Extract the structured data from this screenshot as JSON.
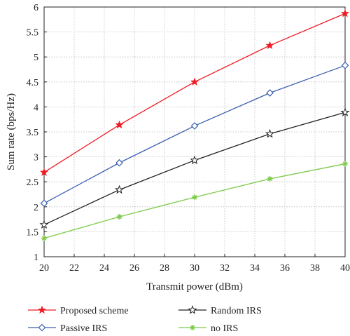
{
  "chart_data": {
    "type": "line",
    "xlabel": "Transmit power (dBm)",
    "ylabel": "Sum rate (bps/Hz)",
    "xlim": [
      20,
      40
    ],
    "ylim": [
      1,
      6
    ],
    "xticks": [
      20,
      22,
      24,
      26,
      28,
      30,
      32,
      34,
      36,
      38,
      40
    ],
    "yticks": [
      1,
      1.5,
      2,
      2.5,
      3,
      3.5,
      4,
      4.5,
      5,
      5.5,
      6
    ],
    "x": [
      20,
      25,
      30,
      35,
      40
    ],
    "grid": true,
    "legend_position": "below",
    "series": [
      {
        "name": "Proposed scheme",
        "values": [
          2.69,
          3.64,
          4.5,
          5.23,
          5.87
        ],
        "color": "#ee1c25",
        "marker": "star"
      },
      {
        "name": "Passive IRS",
        "values": [
          2.07,
          2.88,
          3.62,
          4.28,
          4.83
        ],
        "color": "#3c5fb0",
        "marker": "diamond"
      },
      {
        "name": "Random IRS",
        "values": [
          1.64,
          2.34,
          2.93,
          3.46,
          3.89
        ],
        "color": "#222222",
        "marker": "star-outline"
      },
      {
        "name": "no IRS",
        "values": [
          1.37,
          1.8,
          2.19,
          2.56,
          2.86
        ],
        "color": "#7ccb4b",
        "marker": "asterisk"
      }
    ]
  }
}
